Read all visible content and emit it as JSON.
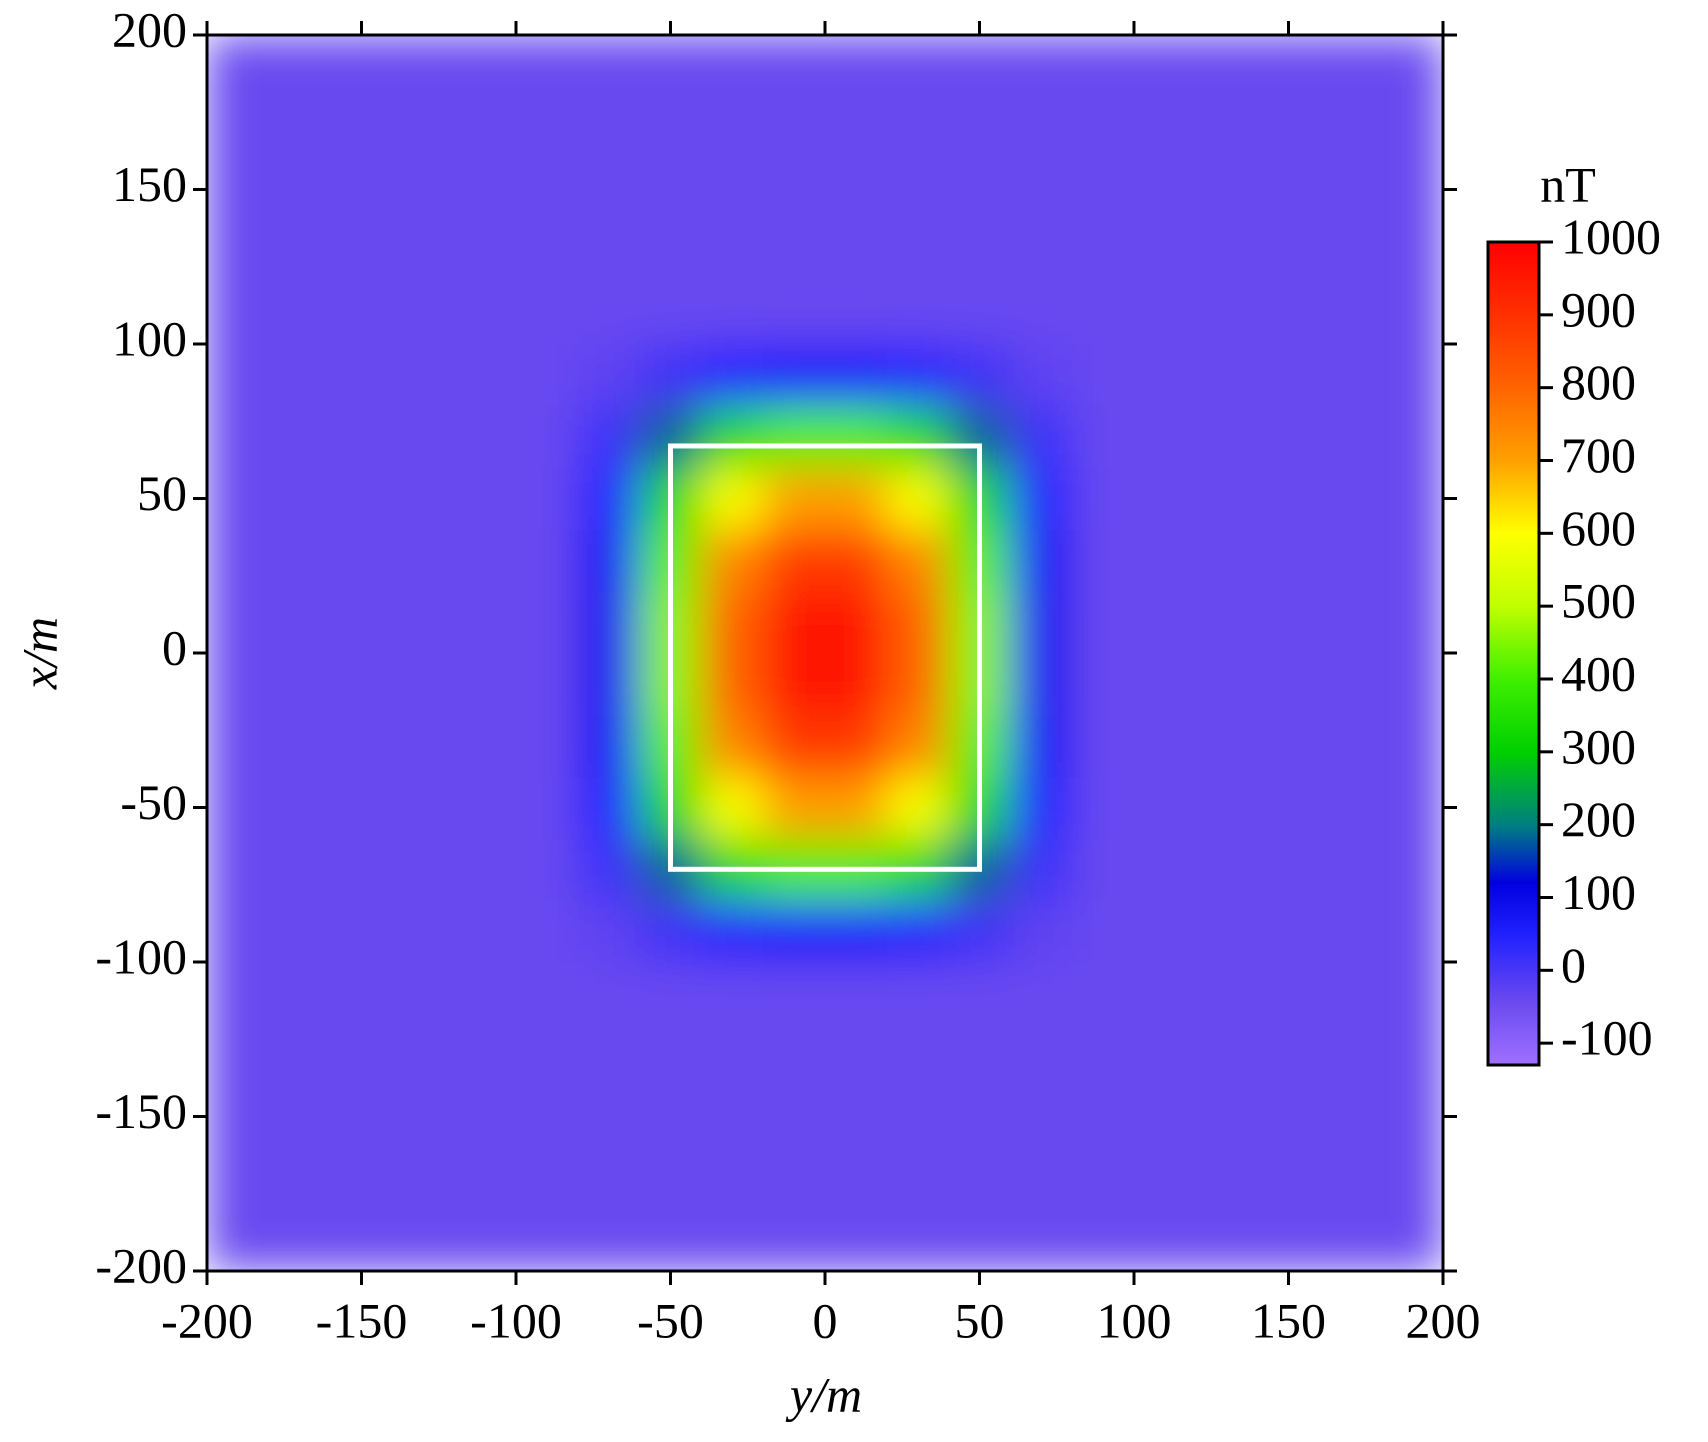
{
  "chart_data": {
    "type": "heatmap",
    "xlabel": "y/m",
    "ylabel": "x/m",
    "colorbar_label": "nT",
    "x": [
      -190,
      -170,
      -150,
      -130,
      -110,
      -90,
      -70,
      -50,
      -30,
      -10,
      10,
      30,
      50,
      70,
      90,
      110,
      130,
      150,
      170,
      190
    ],
    "y": [
      -190,
      -170,
      -150,
      -130,
      -110,
      -90,
      -70,
      -50,
      -30,
      -10,
      10,
      30,
      50,
      70,
      90,
      110,
      130,
      150,
      170,
      190
    ],
    "z": [
      [
        -40,
        -40,
        -40,
        -40,
        -40,
        -40,
        -40,
        -40,
        -40,
        -40,
        -40,
        -40,
        -40,
        -40,
        -40,
        -40,
        -40,
        -40,
        -40,
        -40
      ],
      [
        -40,
        -40,
        -40,
        -40,
        -40,
        -40,
        -40,
        -40,
        -40,
        -40,
        -40,
        -40,
        -40,
        -40,
        -40,
        -40,
        -40,
        -40,
        -40,
        -40
      ],
      [
        -40,
        -40,
        -40,
        -40,
        -40,
        -40,
        -40,
        -40,
        -40,
        -40,
        -40,
        -40,
        -40,
        -40,
        -40,
        -40,
        -40,
        -40,
        -40,
        -40
      ],
      [
        -40,
        -40,
        -40,
        -40,
        -40,
        -40,
        -40,
        -40,
        -40,
        -40,
        -40,
        -40,
        -40,
        -40,
        -40,
        -40,
        -40,
        -40,
        -40,
        -40
      ],
      [
        -40,
        -40,
        -40,
        -40,
        -40,
        -40,
        -40,
        -40,
        -40,
        -40,
        -40,
        -40,
        -40,
        -40,
        -40,
        -40,
        -40,
        -40,
        -40,
        -40
      ],
      [
        -40,
        -40,
        -40,
        -40,
        -40,
        -40,
        -28,
        10,
        44,
        59,
        59,
        44,
        10,
        -28,
        -40,
        -40,
        -40,
        -40,
        -40,
        -40
      ],
      [
        -40,
        -40,
        -40,
        -40,
        -40,
        -40,
        13,
        183,
        339,
        406,
        406,
        339,
        183,
        13,
        -40,
        -40,
        -40,
        -40,
        -40,
        -40
      ],
      [
        -40,
        -40,
        -40,
        -40,
        -40,
        -40,
        49,
        331,
        591,
        703,
        703,
        591,
        331,
        49,
        -40,
        -40,
        -40,
        -40,
        -40,
        -40
      ],
      [
        -40,
        -40,
        -40,
        -40,
        -40,
        -40,
        70,
        420,
        743,
        881,
        881,
        743,
        420,
        70,
        -40,
        -40,
        -40,
        -40,
        -40,
        -40
      ],
      [
        -40,
        -40,
        -40,
        -40,
        -40,
        -40,
        79,
        455,
        802,
        950,
        950,
        802,
        455,
        79,
        -40,
        -40,
        -40,
        -40,
        -40,
        -40
      ],
      [
        -40,
        -40,
        -40,
        -40,
        -40,
        -40,
        79,
        455,
        802,
        950,
        950,
        802,
        455,
        79,
        -40,
        -40,
        -40,
        -40,
        -40,
        -40
      ],
      [
        -40,
        -40,
        -40,
        -40,
        -40,
        -40,
        70,
        420,
        743,
        881,
        881,
        743,
        420,
        70,
        -40,
        -40,
        -40,
        -40,
        -40,
        -40
      ],
      [
        -40,
        -40,
        -40,
        -40,
        -40,
        -40,
        49,
        331,
        591,
        703,
        703,
        591,
        331,
        49,
        -40,
        -40,
        -40,
        -40,
        -40,
        -40
      ],
      [
        -40,
        -40,
        -40,
        -40,
        -40,
        -40,
        13,
        183,
        339,
        406,
        406,
        339,
        183,
        13,
        -40,
        -40,
        -40,
        -40,
        -40,
        -40
      ],
      [
        -40,
        -40,
        -40,
        -40,
        -40,
        -40,
        -28,
        10,
        44,
        59,
        59,
        44,
        10,
        -28,
        -40,
        -40,
        -40,
        -40,
        -40,
        -40
      ],
      [
        -40,
        -40,
        -40,
        -40,
        -40,
        -40,
        -40,
        -40,
        -40,
        -40,
        -40,
        -40,
        -40,
        -40,
        -40,
        -40,
        -40,
        -40,
        -40,
        -40
      ],
      [
        -40,
        -40,
        -40,
        -40,
        -40,
        -40,
        -40,
        -40,
        -40,
        -40,
        -40,
        -40,
        -40,
        -40,
        -40,
        -40,
        -40,
        -40,
        -40,
        -40
      ],
      [
        -40,
        -40,
        -40,
        -40,
        -40,
        -40,
        -40,
        -40,
        -40,
        -40,
        -40,
        -40,
        -40,
        -40,
        -40,
        -40,
        -40,
        -40,
        -40,
        -40
      ],
      [
        -40,
        -40,
        -40,
        -40,
        -40,
        -40,
        -40,
        -40,
        -40,
        -40,
        -40,
        -40,
        -40,
        -40,
        -40,
        -40,
        -40,
        -40,
        -40,
        -40
      ],
      [
        -40,
        -40,
        -40,
        -40,
        -40,
        -40,
        -40,
        -40,
        -40,
        -40,
        -40,
        -40,
        -40,
        -40,
        -40,
        -40,
        -40,
        -40,
        -40,
        -40
      ]
    ],
    "outline": {
      "x": [
        -50,
        50
      ],
      "y": [
        -70,
        67
      ],
      "color": "#ffffff"
    },
    "xlim": [
      -200,
      200
    ],
    "xticks": [
      -200,
      -150,
      -100,
      -50,
      0,
      50,
      100,
      150,
      200
    ],
    "ylim": [
      -200,
      200
    ],
    "yticks": [
      -200,
      -150,
      -100,
      -50,
      0,
      50,
      100,
      150,
      200
    ],
    "zlim": [
      -130,
      1000
    ],
    "zticks": [
      -100,
      0,
      100,
      200,
      300,
      400,
      500,
      600,
      700,
      800,
      900,
      1000
    ],
    "colormap": [
      {
        "value": -130,
        "color": "#a070ff"
      },
      {
        "value": -40,
        "color": "#6848f0"
      },
      {
        "value": 50,
        "color": "#2020ff"
      },
      {
        "value": 120,
        "color": "#0000e0"
      },
      {
        "value": 200,
        "color": "#008080"
      },
      {
        "value": 300,
        "color": "#00d000"
      },
      {
        "value": 400,
        "color": "#40f000"
      },
      {
        "value": 500,
        "color": "#c0ff00"
      },
      {
        "value": 600,
        "color": "#ffff00"
      },
      {
        "value": 700,
        "color": "#ffa000"
      },
      {
        "value": 800,
        "color": "#ff6400"
      },
      {
        "value": 900,
        "color": "#ff3000"
      },
      {
        "value": 1000,
        "color": "#ff0000"
      }
    ]
  }
}
